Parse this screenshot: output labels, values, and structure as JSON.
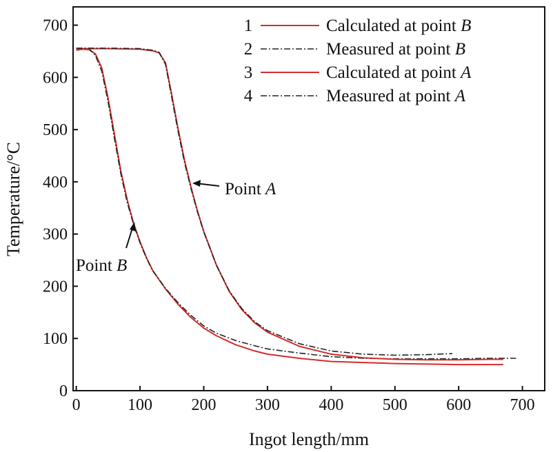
{
  "chart_data": {
    "type": "line",
    "xlabel": "Ingot length/mm",
    "ylabel": "Temperature/°C",
    "xlim": [
      -5,
      735
    ],
    "ylim": [
      0,
      735
    ],
    "xticks": [
      0,
      100,
      200,
      300,
      400,
      500,
      600,
      700
    ],
    "yticks": [
      0,
      100,
      200,
      300,
      400,
      500,
      600,
      700
    ],
    "legend_position": "top-right",
    "series": [
      {
        "legend_number": "1",
        "legend_text": "Calculated at point ",
        "legend_point": "B",
        "color": "#d62b2b",
        "style": "solid",
        "x": [
          0,
          10,
          20,
          30,
          40,
          50,
          60,
          70,
          80,
          90,
          100,
          110,
          120,
          140,
          160,
          180,
          200,
          220,
          250,
          280,
          300,
          350,
          400,
          450,
          500,
          550,
          600,
          650,
          670
        ],
        "y": [
          652,
          654,
          653,
          645,
          618,
          560,
          490,
          420,
          365,
          320,
          285,
          255,
          230,
          195,
          165,
          140,
          120,
          105,
          88,
          76,
          70,
          62,
          56,
          54,
          52,
          51,
          50,
          50,
          50
        ]
      },
      {
        "legend_number": "2",
        "legend_text": "Measured at point ",
        "legend_point": "B",
        "color": "#222222",
        "style": "dashdot",
        "x": [
          0,
          10,
          20,
          30,
          40,
          50,
          60,
          70,
          80,
          90,
          100,
          110,
          120,
          140,
          160,
          180,
          200,
          220,
          250,
          280,
          300,
          350,
          400,
          450,
          500,
          550,
          600,
          650,
          690
        ],
        "y": [
          655,
          656,
          655,
          642,
          612,
          553,
          482,
          415,
          360,
          318,
          283,
          254,
          230,
          196,
          168,
          144,
          124,
          110,
          96,
          86,
          80,
          72,
          65,
          62,
          61,
          61,
          61,
          62,
          62
        ]
      },
      {
        "legend_number": "3",
        "legend_text": "Calculated at point ",
        "legend_point": "A",
        "color": "#d62b2b",
        "style": "solid",
        "x": [
          0,
          50,
          100,
          120,
          130,
          140,
          150,
          160,
          170,
          180,
          190,
          200,
          220,
          240,
          260,
          280,
          300,
          350,
          400,
          450,
          500,
          550,
          600,
          650,
          670
        ],
        "y": [
          655,
          655,
          654,
          651,
          647,
          628,
          565,
          500,
          440,
          390,
          345,
          305,
          240,
          190,
          155,
          130,
          112,
          85,
          70,
          63,
          60,
          59,
          59,
          60,
          60
        ]
      },
      {
        "legend_number": "4",
        "legend_text": "Measured at point ",
        "legend_point": "A",
        "color": "#222222",
        "style": "dashdot",
        "x": [
          0,
          50,
          100,
          120,
          130,
          140,
          150,
          160,
          170,
          180,
          190,
          200,
          220,
          240,
          260,
          280,
          300,
          350,
          400,
          450,
          500,
          550,
          590
        ],
        "y": [
          656,
          656,
          655,
          652,
          648,
          625,
          560,
          495,
          436,
          387,
          343,
          304,
          240,
          191,
          157,
          132,
          115,
          90,
          76,
          70,
          68,
          69,
          71
        ]
      }
    ],
    "annotations": [
      {
        "text": "Point ",
        "point": "A"
      },
      {
        "text": "Point ",
        "point": "B"
      }
    ]
  }
}
